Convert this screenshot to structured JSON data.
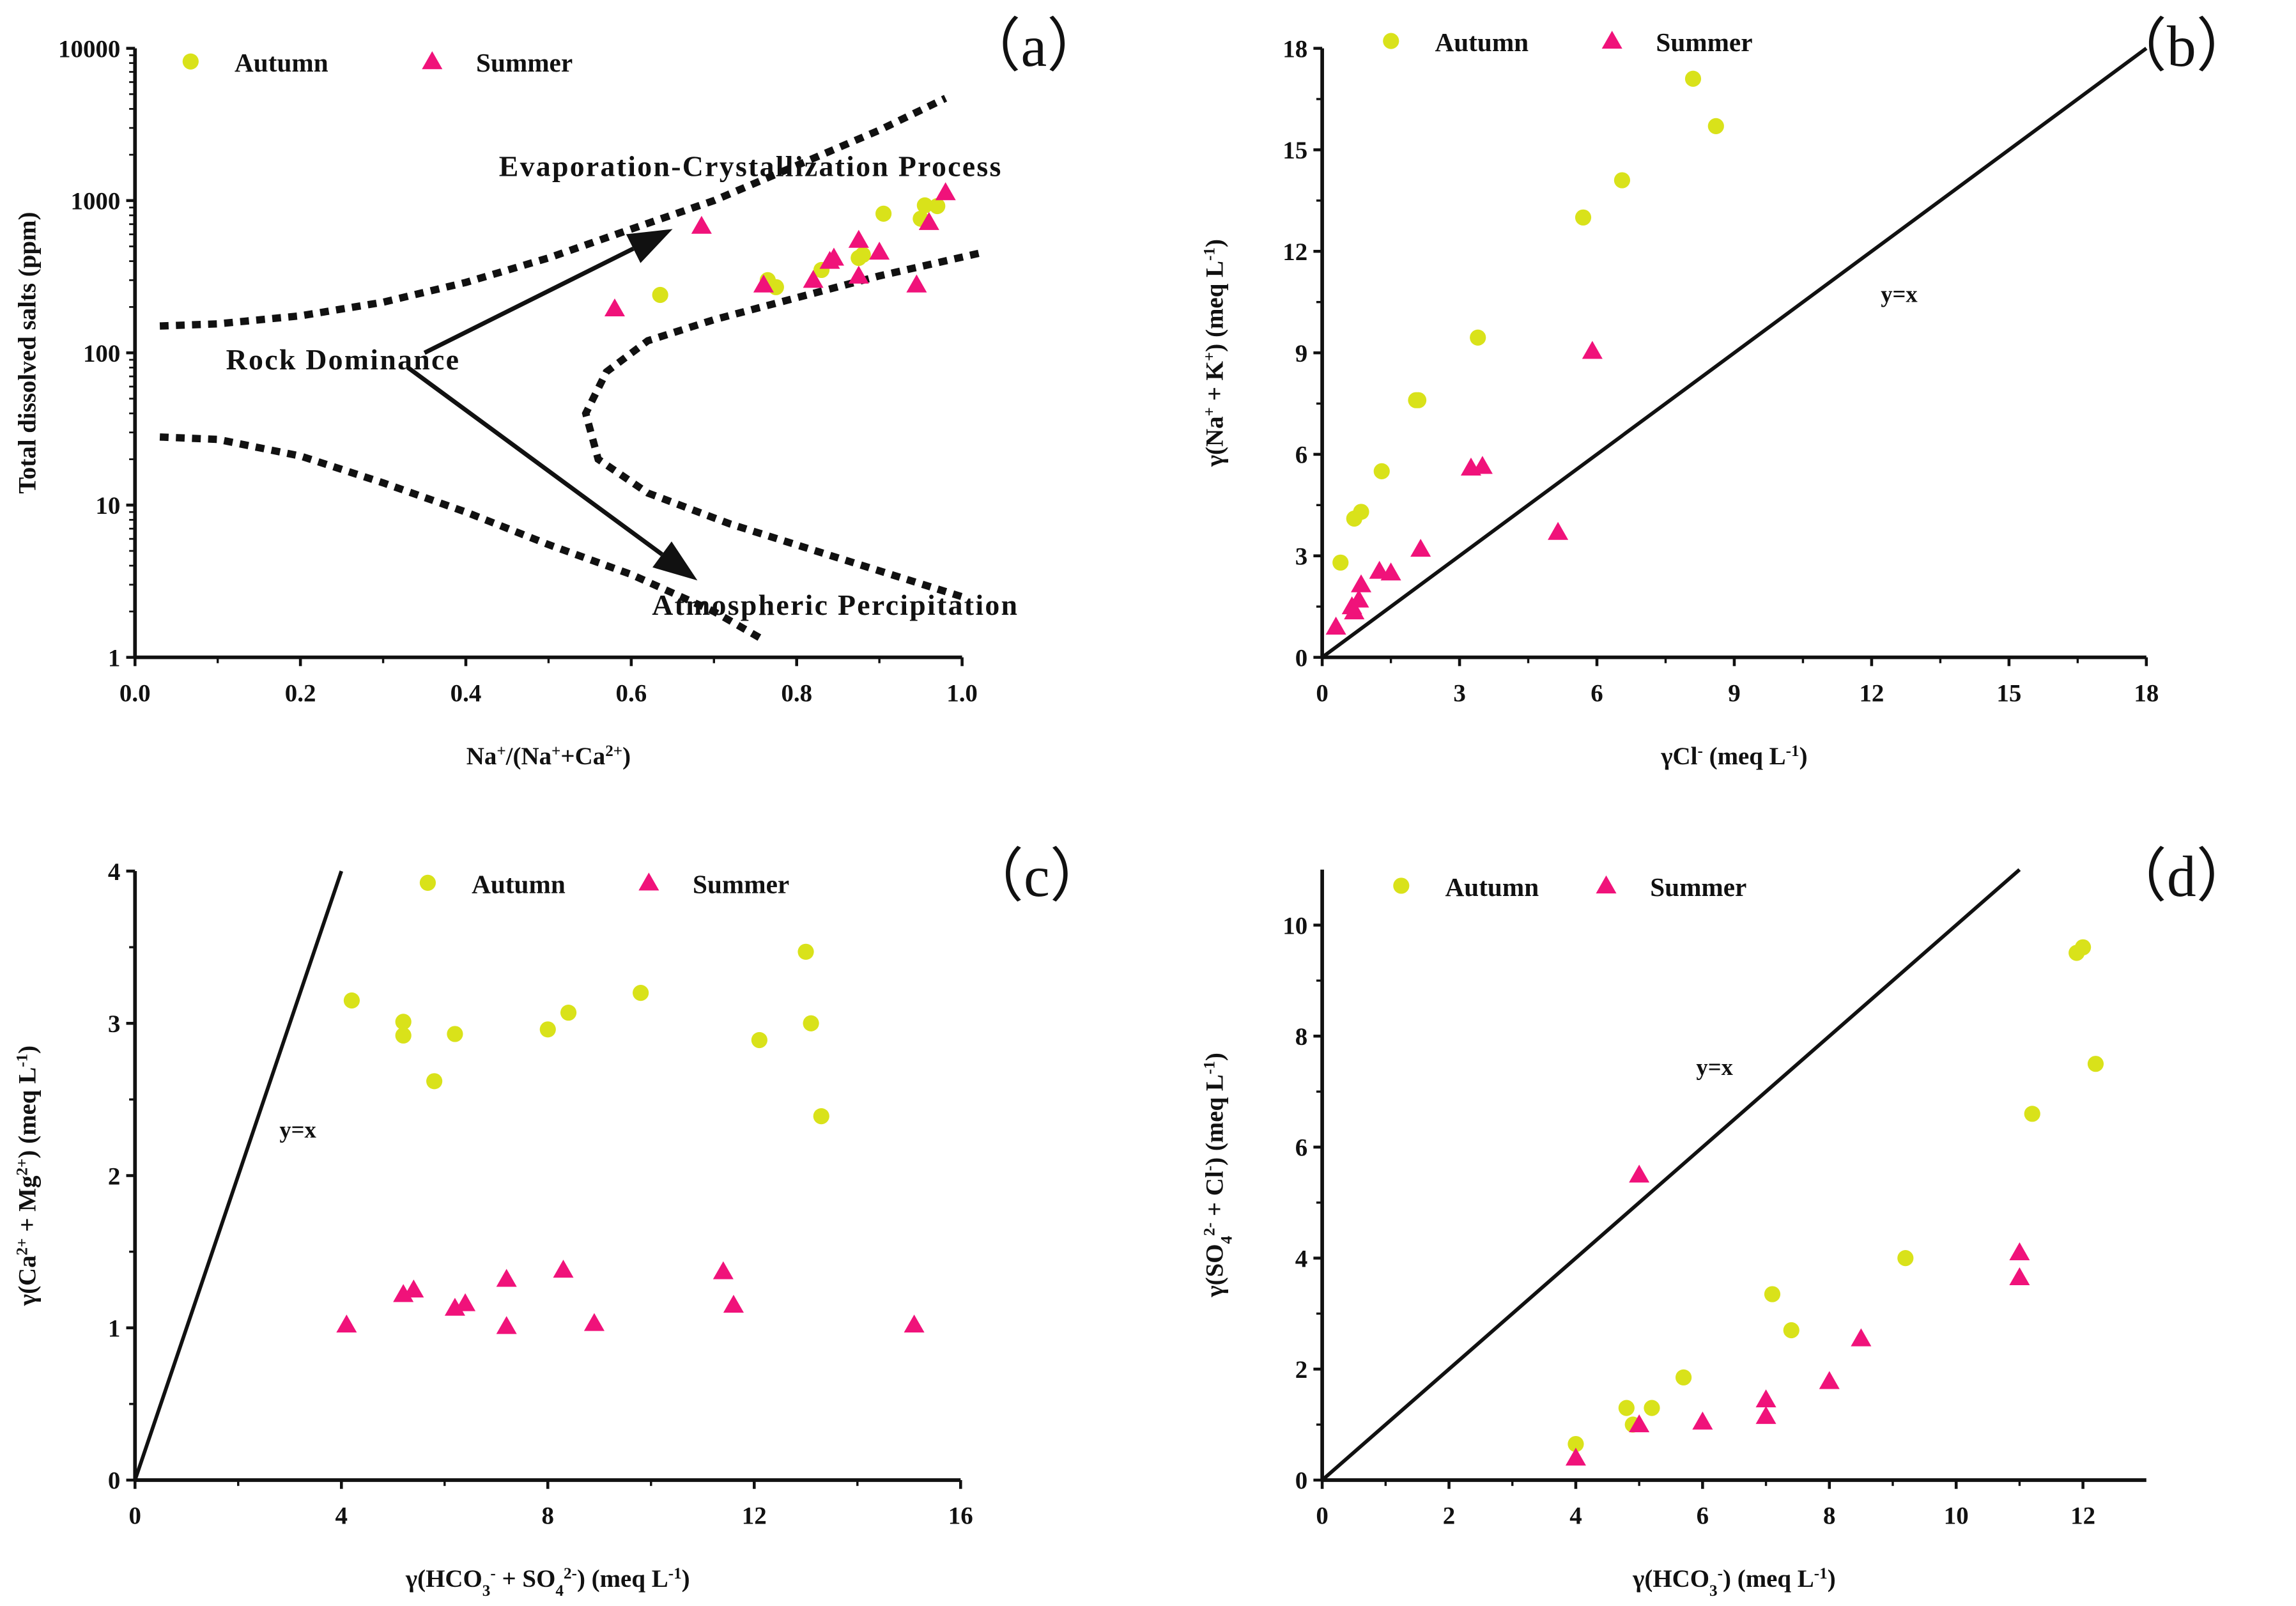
{
  "chart_data": [
    {
      "id": "a",
      "type": "scatter",
      "panel_label": "（a）",
      "xscale": "linear",
      "yscale": "log",
      "xlim": [
        0,
        1.0
      ],
      "ylim": [
        1,
        10000
      ],
      "xticks": [
        0.0,
        0.2,
        0.4,
        0.6,
        0.8,
        1.0
      ],
      "xtick_labels": [
        "0.0",
        "0.2",
        "0.4",
        "0.6",
        "0.8",
        "1.0"
      ],
      "yticks": [
        1,
        10,
        100,
        1000,
        10000
      ],
      "ytick_labels": [
        "1",
        "10",
        "100",
        "1000",
        "10000"
      ],
      "xlabel": [
        {
          "t": "Na"
        },
        {
          "t": "+",
          "sup": true
        },
        {
          "t": "/(Na"
        },
        {
          "t": "+",
          "sup": true
        },
        {
          "t": "+Ca"
        },
        {
          "t": "2+",
          "sup": true
        },
        {
          "t": ")"
        }
      ],
      "ylabel": [
        {
          "t": "Total dissolved salts (ppm)"
        }
      ],
      "legend": {
        "position": "top-left",
        "entries": [
          "Autumn",
          "Summer"
        ]
      },
      "series": [
        {
          "name": "Autumn",
          "marker": "circle",
          "color": "#d9e21a",
          "points": [
            [
              0.635,
              240
            ],
            [
              0.765,
              300
            ],
            [
              0.775,
              270
            ],
            [
              0.83,
              350
            ],
            [
              0.875,
              420
            ],
            [
              0.88,
              440
            ],
            [
              0.905,
              820
            ],
            [
              0.95,
              760
            ],
            [
              0.955,
              930
            ],
            [
              0.97,
              920
            ]
          ]
        },
        {
          "name": "Summer",
          "marker": "triangle",
          "color": "#f0127a",
          "points": [
            [
              0.58,
              195
            ],
            [
              0.685,
              680
            ],
            [
              0.76,
              280
            ],
            [
              0.82,
              300
            ],
            [
              0.84,
              400
            ],
            [
              0.845,
              420
            ],
            [
              0.875,
              550
            ],
            [
              0.875,
              320
            ],
            [
              0.9,
              460
            ],
            [
              0.945,
              280
            ],
            [
              0.96,
              720
            ],
            [
              0.98,
              1130
            ]
          ]
        }
      ],
      "guide_curves": [
        [
          [
            0.03,
            150
          ],
          [
            0.1,
            155
          ],
          [
            0.2,
            175
          ],
          [
            0.3,
            215
          ],
          [
            0.4,
            290
          ],
          [
            0.5,
            420
          ],
          [
            0.6,
            650
          ],
          [
            0.7,
            1000
          ],
          [
            0.8,
            1700
          ],
          [
            0.9,
            2900
          ],
          [
            0.98,
            4700
          ]
        ],
        [
          [
            0.03,
            28
          ],
          [
            0.1,
            27
          ],
          [
            0.2,
            21
          ],
          [
            0.3,
            14
          ],
          [
            0.4,
            9
          ],
          [
            0.5,
            5.5
          ],
          [
            0.6,
            3.5
          ],
          [
            0.7,
            2.0
          ],
          [
            0.76,
            1.3
          ]
        ],
        [
          [
            1.02,
            450
          ],
          [
            0.9,
            320
          ],
          [
            0.8,
            230
          ],
          [
            0.7,
            165
          ],
          [
            0.62,
            120
          ],
          [
            0.57,
            75
          ],
          [
            0.545,
            40
          ],
          [
            0.56,
            20
          ],
          [
            0.62,
            12
          ],
          [
            0.72,
            7.5
          ],
          [
            0.85,
            4.5
          ],
          [
            1.0,
            2.5
          ]
        ]
      ],
      "arrows": [
        [
          [
            0.35,
            100
          ],
          [
            0.65,
            650
          ]
        ],
        [
          [
            0.33,
            80
          ],
          [
            0.68,
            3.2
          ]
        ]
      ],
      "annotations": [
        {
          "text": "Evaporation-Crystallization Process",
          "at": [
            0.44,
            1450
          ]
        },
        {
          "text": "Rock Dominance",
          "at": [
            0.11,
            78
          ]
        },
        {
          "text": "Atmospheric Percipitation",
          "at": [
            0.625,
            1.9
          ]
        }
      ]
    },
    {
      "id": "b",
      "type": "scatter",
      "panel_label": "（b）",
      "xscale": "linear",
      "yscale": "linear",
      "xlim": [
        0,
        18
      ],
      "ylim": [
        0,
        18
      ],
      "xticks": [
        0,
        3,
        6,
        9,
        12,
        15,
        18
      ],
      "xtick_labels": [
        "0",
        "3",
        "6",
        "9",
        "12",
        "15",
        "18"
      ],
      "yticks": [
        0,
        3,
        6,
        9,
        12,
        15,
        18
      ],
      "ytick_labels": [
        "0",
        "3",
        "6",
        "9",
        "12",
        "15",
        "18"
      ],
      "xlabel": [
        {
          "t": "γCl"
        },
        {
          "t": "-",
          "sup": true
        },
        {
          "t": " (meq L"
        },
        {
          "t": "-1",
          "sup": true
        },
        {
          "t": ")"
        }
      ],
      "ylabel": [
        {
          "t": "γ(Na"
        },
        {
          "t": "+",
          "sup": true
        },
        {
          "t": " + K"
        },
        {
          "t": "+",
          "sup": true
        },
        {
          "t": ") (meq L"
        },
        {
          "t": "-1",
          "sup": true
        },
        {
          "t": ")"
        }
      ],
      "legend": {
        "position": "top-left",
        "entries": [
          "Autumn",
          "Summer"
        ]
      },
      "reference_line": {
        "label": "y=x",
        "from": [
          0,
          0
        ],
        "to": [
          18,
          18
        ],
        "label_at": [
          12.2,
          10.5
        ]
      },
      "series": [
        {
          "name": "Autumn",
          "marker": "circle",
          "color": "#d9e21a",
          "points": [
            [
              0.4,
              2.8
            ],
            [
              0.7,
              4.1
            ],
            [
              0.85,
              4.3
            ],
            [
              1.3,
              5.5
            ],
            [
              2.05,
              7.6
            ],
            [
              2.1,
              7.6
            ],
            [
              3.4,
              9.45
            ],
            [
              5.7,
              13.0
            ],
            [
              6.55,
              14.1
            ],
            [
              8.1,
              17.1
            ],
            [
              8.6,
              15.7
            ]
          ]
        },
        {
          "name": "Summer",
          "marker": "triangle",
          "color": "#f0127a",
          "points": [
            [
              0.3,
              0.9
            ],
            [
              0.65,
              1.5
            ],
            [
              0.7,
              1.35
            ],
            [
              0.8,
              1.7
            ],
            [
              0.85,
              2.15
            ],
            [
              1.25,
              2.55
            ],
            [
              1.5,
              2.5
            ],
            [
              2.15,
              3.2
            ],
            [
              3.25,
              5.6
            ],
            [
              3.5,
              5.65
            ],
            [
              5.15,
              3.7
            ],
            [
              5.9,
              9.05
            ]
          ]
        }
      ]
    },
    {
      "id": "c",
      "type": "scatter",
      "panel_label": "（c）",
      "xscale": "linear",
      "yscale": "linear",
      "xlim": [
        0,
        16
      ],
      "ylim": [
        0,
        4
      ],
      "xticks": [
        0,
        4,
        8,
        12,
        16
      ],
      "xtick_labels": [
        "0",
        "4",
        "8",
        "12",
        "16"
      ],
      "yticks": [
        0,
        1,
        2,
        3,
        4
      ],
      "ytick_labels": [
        "0",
        "1",
        "2",
        "3",
        "4"
      ],
      "xlabel": [
        {
          "t": "γ(HCO"
        },
        {
          "t": "3",
          "sub": true
        },
        {
          "t": "-",
          "sup": true
        },
        {
          "t": " + SO"
        },
        {
          "t": "4",
          "sub": true
        },
        {
          "t": "2-",
          "sup": true
        },
        {
          "t": ") (meq L"
        },
        {
          "t": "-1",
          "sup": true
        },
        {
          "t": ")"
        }
      ],
      "ylabel": [
        {
          "t": "γ(Ca"
        },
        {
          "t": "2+",
          "sup": true
        },
        {
          "t": " + Mg"
        },
        {
          "t": "2+",
          "sup": true
        },
        {
          "t": ") (meq L"
        },
        {
          "t": "-1",
          "sup": true
        },
        {
          "t": ")"
        }
      ],
      "legend": {
        "position": "top-center",
        "entries": [
          "Autumn",
          "Summer"
        ]
      },
      "reference_line": {
        "label": "y=x",
        "from": [
          0,
          0
        ],
        "to": [
          4,
          4
        ],
        "label_at": [
          2.8,
          2.25
        ]
      },
      "series": [
        {
          "name": "Autumn",
          "marker": "circle",
          "color": "#d9e21a",
          "points": [
            [
              4.2,
              3.15
            ],
            [
              5.2,
              3.01
            ],
            [
              5.2,
              2.92
            ],
            [
              5.8,
              2.62
            ],
            [
              6.2,
              2.93
            ],
            [
              8.0,
              2.96
            ],
            [
              8.4,
              3.07
            ],
            [
              9.8,
              3.2
            ],
            [
              12.1,
              2.89
            ],
            [
              13.0,
              3.47
            ],
            [
              13.1,
              3.0
            ],
            [
              13.3,
              2.39
            ]
          ]
        },
        {
          "name": "Summer",
          "marker": "triangle",
          "color": "#f0127a",
          "points": [
            [
              4.1,
              1.02
            ],
            [
              5.2,
              1.22
            ],
            [
              5.4,
              1.25
            ],
            [
              6.2,
              1.13
            ],
            [
              6.4,
              1.16
            ],
            [
              7.2,
              1.32
            ],
            [
              7.2,
              1.01
            ],
            [
              8.3,
              1.38
            ],
            [
              8.9,
              1.03
            ],
            [
              11.4,
              1.37
            ],
            [
              11.6,
              1.15
            ],
            [
              15.1,
              1.02
            ]
          ]
        }
      ]
    },
    {
      "id": "d",
      "type": "scatter",
      "panel_label": "（d）",
      "xscale": "linear",
      "yscale": "linear",
      "xlim": [
        0,
        13
      ],
      "ylim": [
        0,
        11
      ],
      "xticks": [
        0,
        2,
        4,
        6,
        8,
        10,
        12
      ],
      "xtick_labels": [
        "0",
        "2",
        "4",
        "6",
        "8",
        "10",
        "12"
      ],
      "yticks": [
        0,
        2,
        4,
        6,
        8,
        10
      ],
      "ytick_labels": [
        "0",
        "2",
        "4",
        "6",
        "8",
        "10"
      ],
      "xlabel": [
        {
          "t": "γ(HCO"
        },
        {
          "t": "3",
          "sub": true
        },
        {
          "t": "-",
          "sup": true
        },
        {
          "t": ") (meq L"
        },
        {
          "t": "-1",
          "sup": true
        },
        {
          "t": ")"
        }
      ],
      "ylabel": [
        {
          "t": "γ(SO"
        },
        {
          "t": "4",
          "sub": true
        },
        {
          "t": "2-",
          "sup": true
        },
        {
          "t": " + Cl"
        },
        {
          "t": "-",
          "sup": true
        },
        {
          "t": ") (meq L"
        },
        {
          "t": "-1",
          "sup": true
        },
        {
          "t": ")"
        }
      ],
      "legend": {
        "position": "top-left",
        "entries": [
          "Autumn",
          "Summer"
        ]
      },
      "reference_line": {
        "label": "y=x",
        "from": [
          0,
          0
        ],
        "to": [
          11,
          11
        ],
        "label_at": [
          5.9,
          7.3
        ]
      },
      "series": [
        {
          "name": "Autumn",
          "marker": "circle",
          "color": "#d9e21a",
          "points": [
            [
              4.0,
              0.65
            ],
            [
              4.8,
              1.3
            ],
            [
              4.9,
              1.0
            ],
            [
              5.2,
              1.3
            ],
            [
              5.7,
              1.85
            ],
            [
              7.1,
              3.35
            ],
            [
              7.4,
              2.7
            ],
            [
              9.2,
              4.0
            ],
            [
              11.2,
              6.6
            ],
            [
              11.9,
              9.5
            ],
            [
              12.0,
              9.6
            ],
            [
              12.2,
              7.5
            ]
          ]
        },
        {
          "name": "Summer",
          "marker": "triangle",
          "color": "#f0127a",
          "points": [
            [
              4.0,
              0.4
            ],
            [
              5.0,
              5.5
            ],
            [
              5.0,
              1.0
            ],
            [
              6.0,
              1.05
            ],
            [
              7.0,
              1.45
            ],
            [
              7.0,
              1.15
            ],
            [
              8.0,
              1.78
            ],
            [
              8.5,
              2.55
            ],
            [
              11.0,
              4.1
            ],
            [
              11.0,
              3.65
            ]
          ]
        }
      ]
    }
  ]
}
